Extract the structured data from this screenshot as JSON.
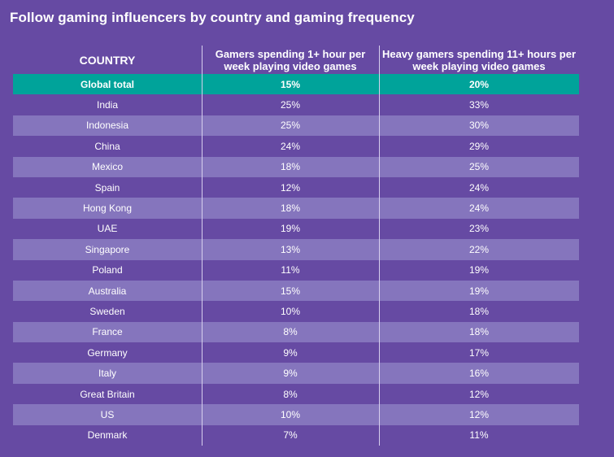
{
  "title": "Follow gaming influencers by country and gaming frequency",
  "colors": {
    "background": "#664aa3",
    "row_alt": "#8575bd",
    "highlight": "#00a39a",
    "text": "#ffffff"
  },
  "chart_data": {
    "type": "table",
    "title": "Follow gaming influencers by country and gaming frequency",
    "columns": [
      "COUNTRY",
      "Gamers spending 1+ hour per week playing video games",
      "Heavy gamers spending 11+ hours per week playing video games"
    ],
    "rows": [
      [
        "Global total",
        "15%",
        "20%"
      ],
      [
        "India",
        "25%",
        "33%"
      ],
      [
        "Indonesia",
        "25%",
        "30%"
      ],
      [
        "China",
        "24%",
        "29%"
      ],
      [
        "Mexico",
        "18%",
        "25%"
      ],
      [
        "Spain",
        "12%",
        "24%"
      ],
      [
        "Hong Kong",
        "18%",
        "24%"
      ],
      [
        "UAE",
        "19%",
        "23%"
      ],
      [
        "Singapore",
        "13%",
        "22%"
      ],
      [
        "Poland",
        "11%",
        "19%"
      ],
      [
        "Australia",
        "15%",
        "19%"
      ],
      [
        "Sweden",
        "10%",
        "18%"
      ],
      [
        "France",
        "8%",
        "18%"
      ],
      [
        "Germany",
        "9%",
        "17%"
      ],
      [
        "Italy",
        "9%",
        "16%"
      ],
      [
        "Great Britain",
        "8%",
        "12%"
      ],
      [
        "US",
        "10%",
        "12%"
      ],
      [
        "Denmark",
        "7%",
        "11%"
      ]
    ]
  }
}
